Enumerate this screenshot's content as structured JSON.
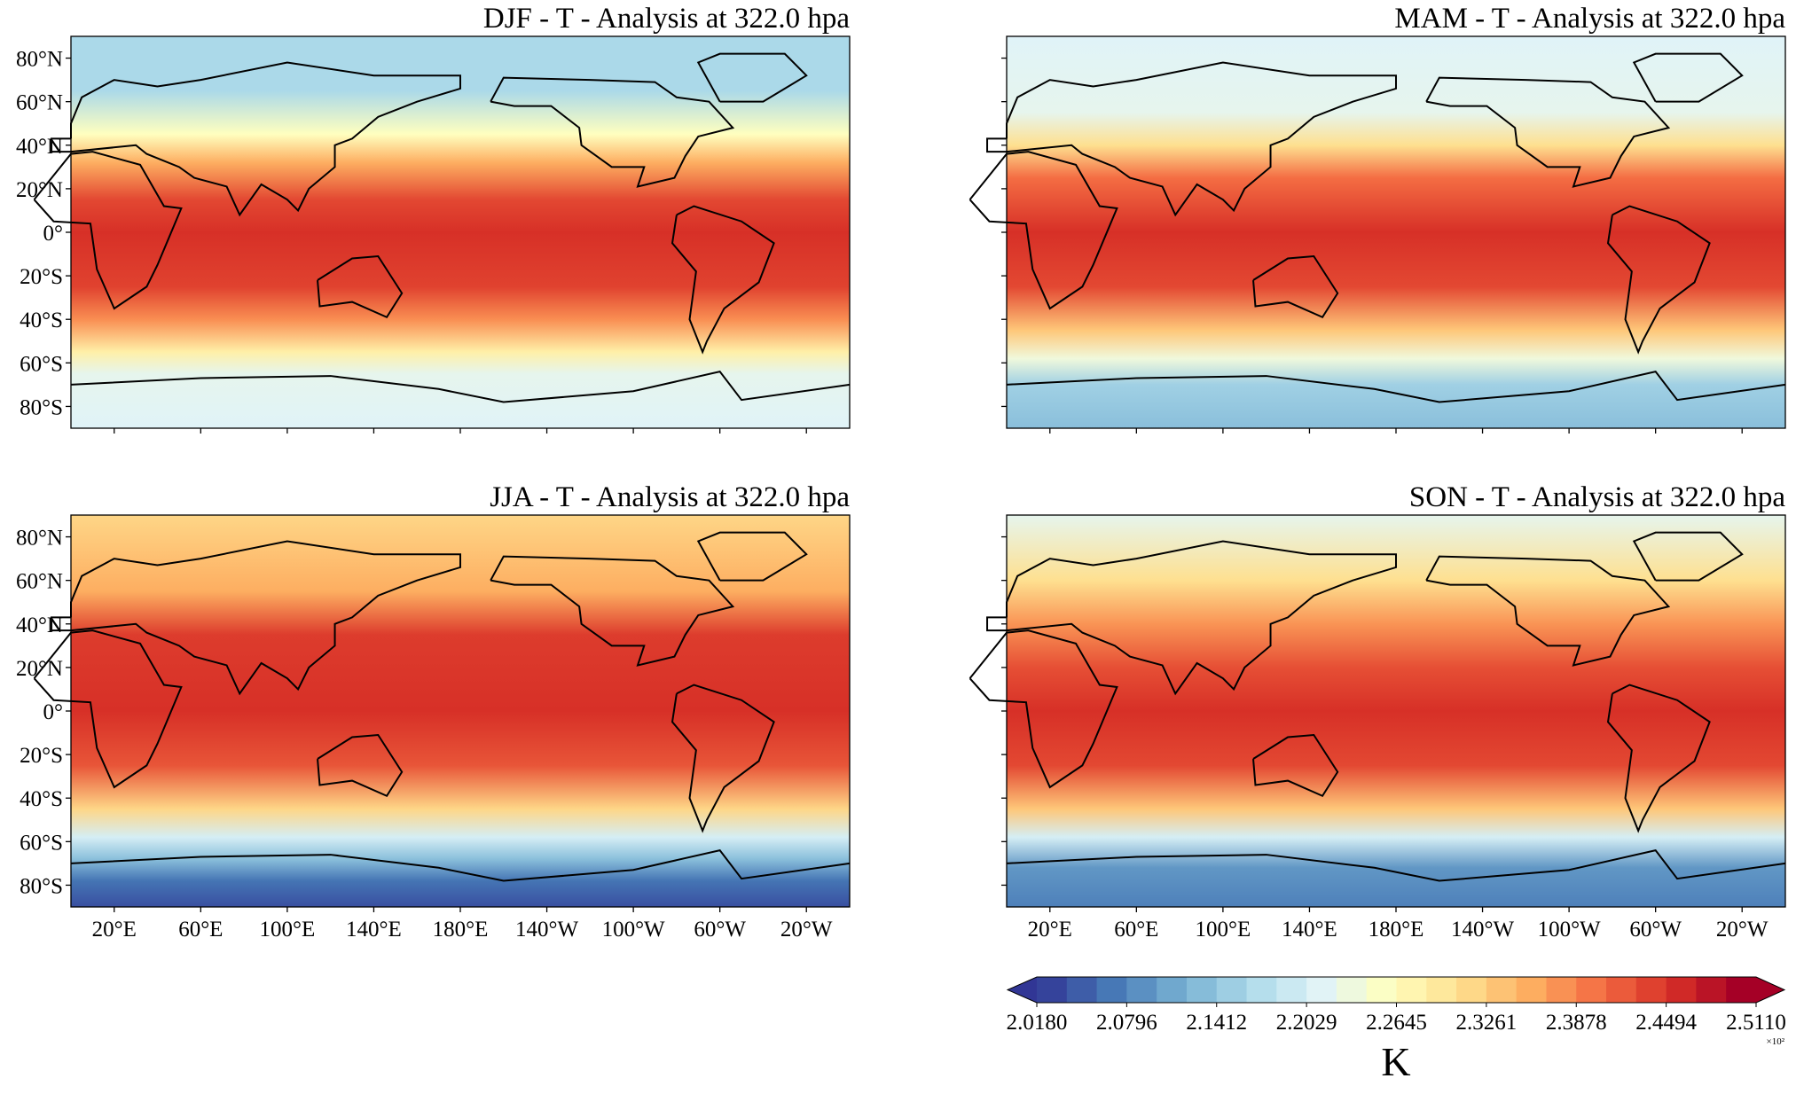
{
  "panels": [
    {
      "title": "DJF - T - Analysis at 322.0 hpa"
    },
    {
      "title": "MAM - T - Analysis at 322.0 hpa"
    },
    {
      "title": "JJA - T - Analysis at 322.0 hpa"
    },
    {
      "title": "SON - T - Analysis at 322.0 hpa"
    }
  ],
  "lat_ticks": [
    "80°N",
    "60°N",
    "40°N",
    "20°N",
    "0°",
    "20°S",
    "40°S",
    "60°S",
    "80°S"
  ],
  "lon_ticks": [
    "20°E",
    "60°E",
    "100°E",
    "140°E",
    "180°E",
    "140°W",
    "100°W",
    "60°W",
    "20°W"
  ],
  "colorbar": {
    "ticks": [
      "2.0180",
      "2.0796",
      "2.1412",
      "2.2029",
      "2.2645",
      "2.3261",
      "2.3878",
      "2.4494",
      "2.5110"
    ],
    "multiplier": "×10²",
    "label": "K"
  }
}
